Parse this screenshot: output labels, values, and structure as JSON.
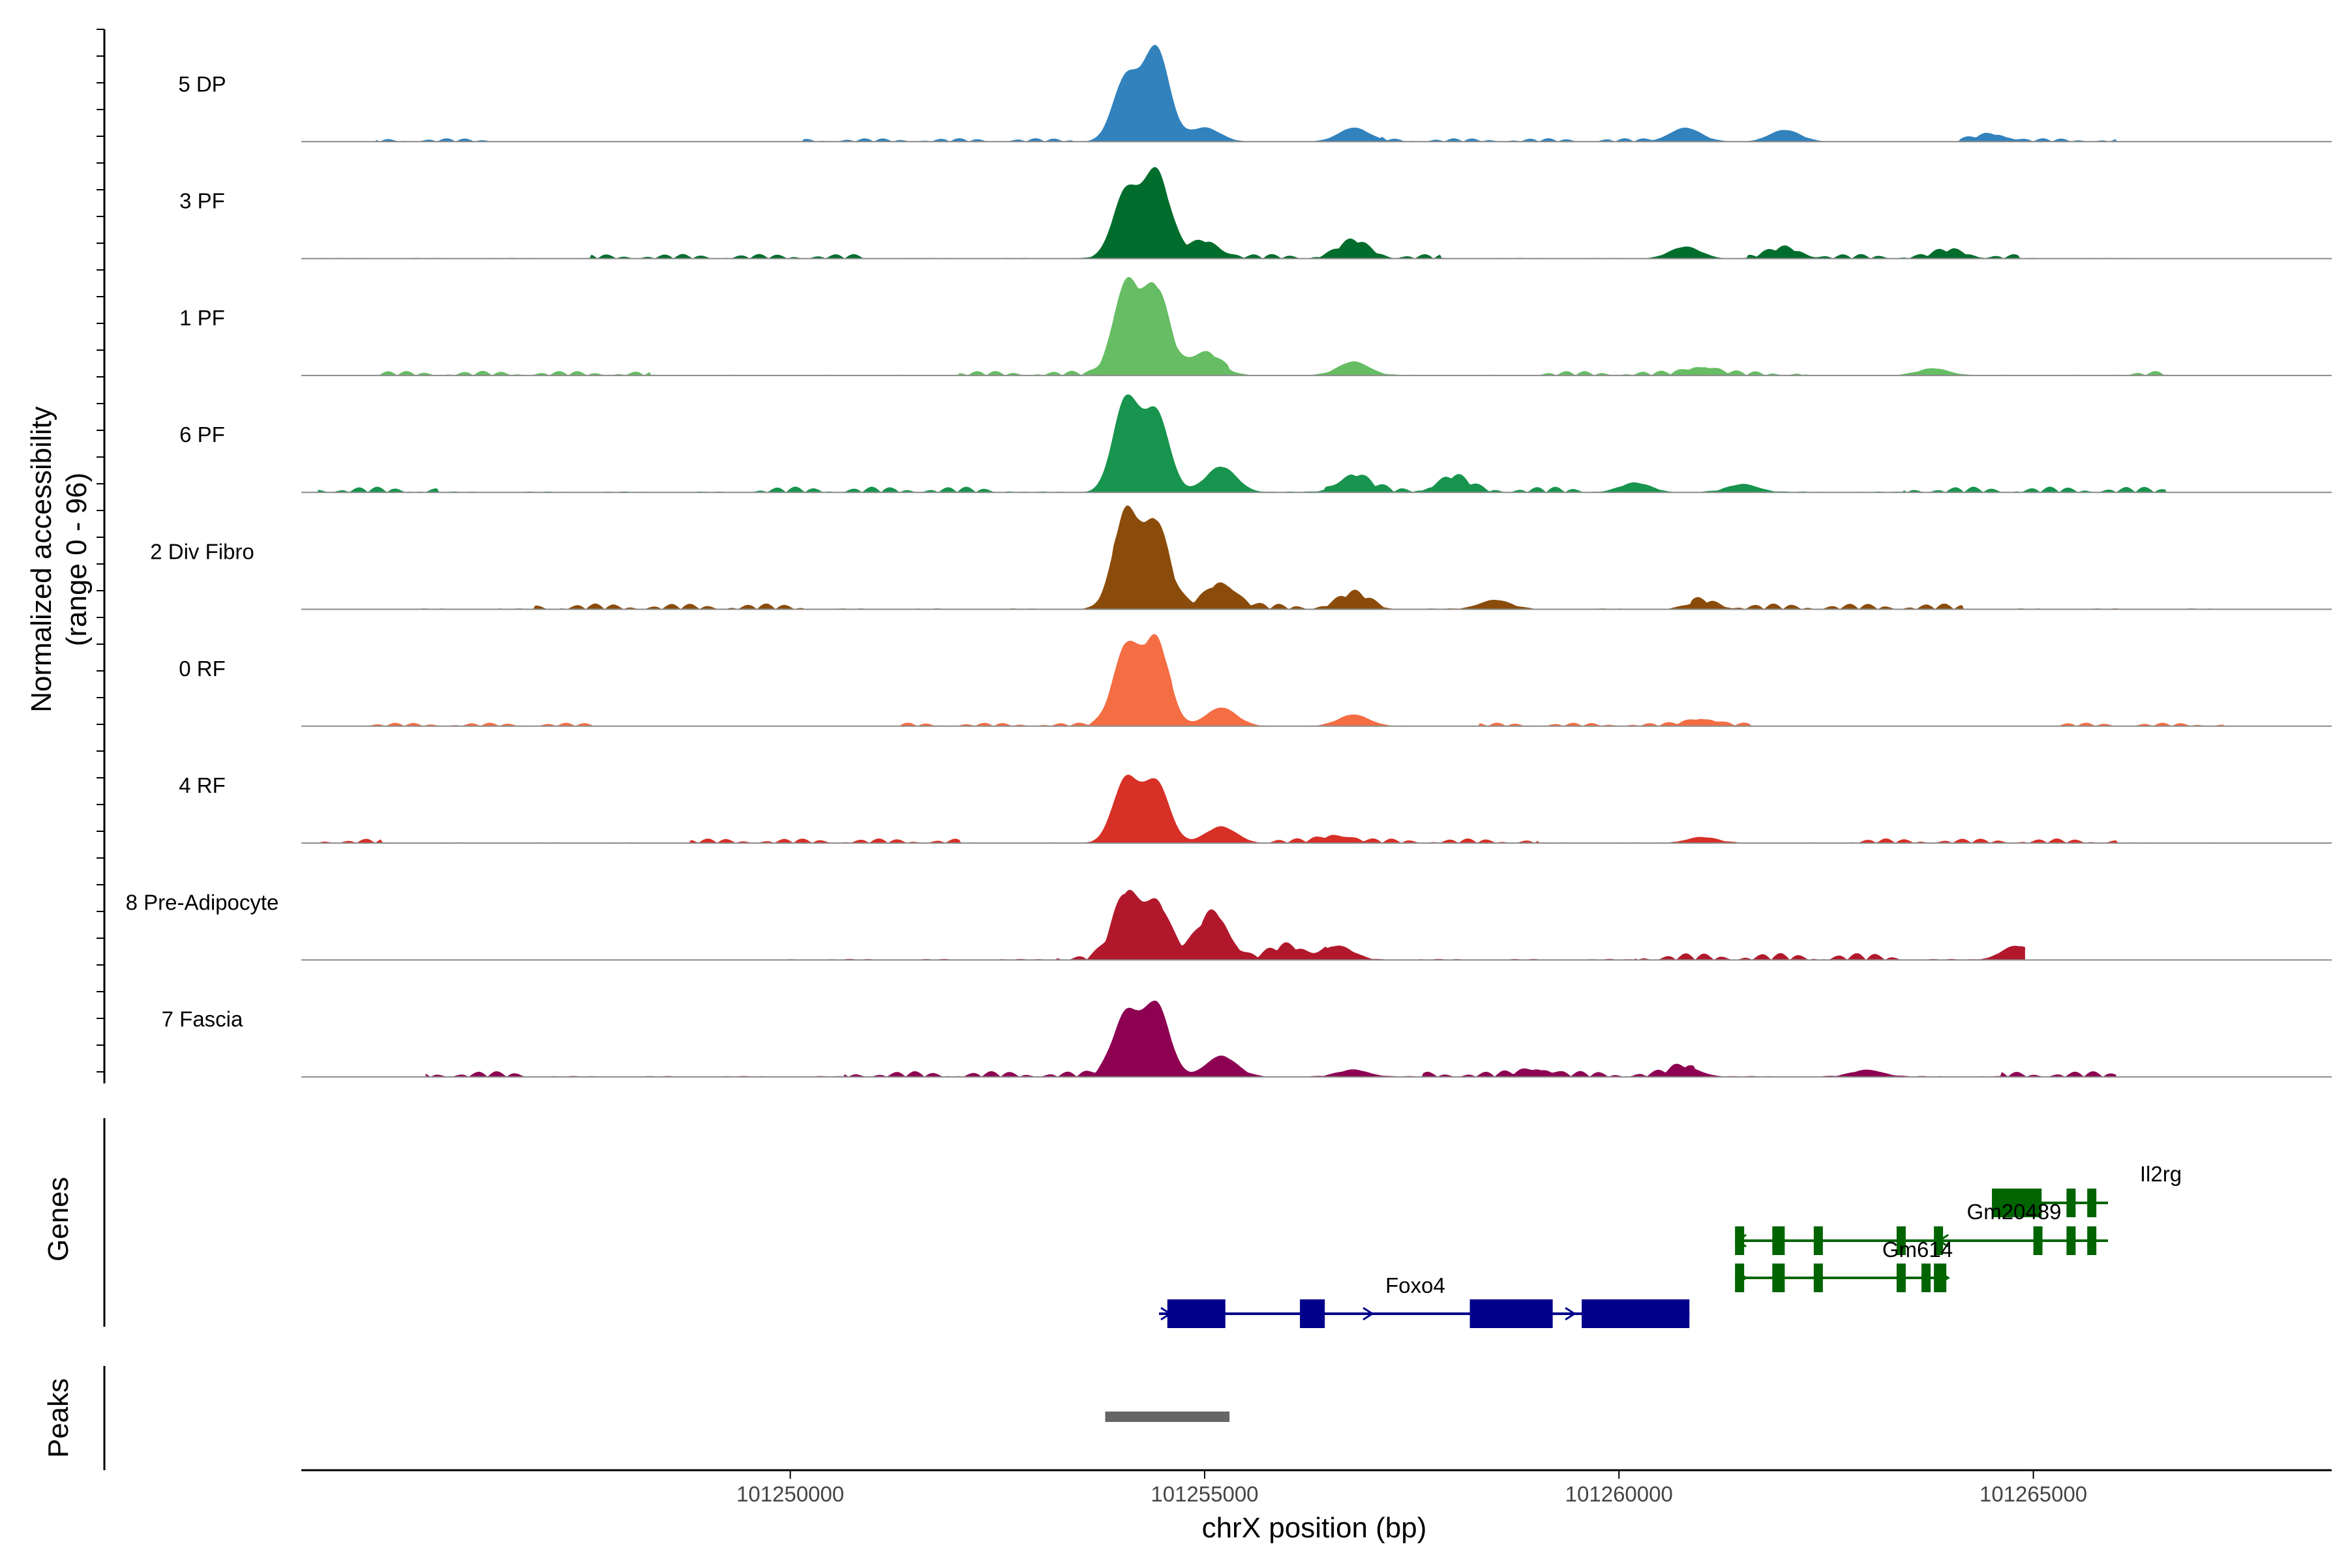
{
  "chart_data": {
    "type": "area",
    "title": "",
    "xlabel": "chrX position (bp)",
    "ylabel": "Normalized accessibility\n(range 0 - 96)",
    "ylabel_line1": "Normalized accessibility",
    "ylabel_line2": "(range 0 - 96)",
    "y_range": [
      0,
      96
    ],
    "xlim": [
      101244100,
      101268600
    ],
    "x_ticks": [
      101250000,
      101255000,
      101260000,
      101265000
    ],
    "x_tick_labels": [
      "101250000",
      "101255000",
      "101260000",
      "101265000"
    ],
    "panel_labels": {
      "genes": "Genes",
      "peaks": "Peaks"
    },
    "tracks": [
      {
        "name": "5 DP",
        "color": "#3182bd",
        "peaks": [
          [
            101254050,
            55
          ],
          [
            101254420,
            80
          ],
          [
            101255000,
            12
          ],
          [
            101256800,
            12
          ],
          [
            101260800,
            12
          ],
          [
            101262000,
            10
          ],
          [
            101264500,
            6
          ]
        ],
        "noise": [
          101245000,
          101266000
        ],
        "bg": 3
      },
      {
        "name": "3 PF",
        "color": "#006d2c",
        "peaks": [
          [
            101254050,
            58
          ],
          [
            101254420,
            75
          ],
          [
            101255000,
            14
          ],
          [
            101256800,
            14
          ],
          [
            101260800,
            10
          ],
          [
            101262000,
            8
          ],
          [
            101264000,
            6
          ]
        ],
        "noise": [
          101244300,
          101266400
        ],
        "bg": 4
      },
      {
        "name": "1 PF",
        "color": "#66bd63",
        "peaks": [
          [
            101254050,
            78
          ],
          [
            101254420,
            72
          ],
          [
            101255000,
            20
          ],
          [
            101256800,
            12
          ],
          [
            101261000,
            7
          ],
          [
            101263800,
            6
          ]
        ],
        "noise": [
          101244300,
          101266600
        ],
        "bg": 4
      },
      {
        "name": "6 PF",
        "color": "#17944d",
        "peaks": [
          [
            101254050,
            80
          ],
          [
            101254420,
            68
          ],
          [
            101255200,
            22
          ],
          [
            101256800,
            14
          ],
          [
            101258000,
            12
          ],
          [
            101260200,
            8
          ],
          [
            101261500,
            7
          ]
        ],
        "noise": [
          101244300,
          101266600
        ],
        "bg": 5
      },
      {
        "name": "2 Div Fibro",
        "color": "#8b4c0b",
        "peaks": [
          [
            101254050,
            82
          ],
          [
            101254420,
            72
          ],
          [
            101255200,
            22
          ],
          [
            101256800,
            12
          ],
          [
            101258500,
            8
          ],
          [
            101261000,
            6
          ]
        ],
        "noise": [
          101244900,
          101267300
        ],
        "bg": 5
      },
      {
        "name": "0 RF",
        "color": "#f46d43",
        "peaks": [
          [
            101254050,
            68
          ],
          [
            101254420,
            72
          ],
          [
            101255200,
            16
          ],
          [
            101256800,
            10
          ],
          [
            101261000,
            6
          ]
        ],
        "noise": [
          101244900,
          101267300
        ],
        "bg": 3
      },
      {
        "name": "4 RF",
        "color": "#d73027",
        "peaks": [
          [
            101254050,
            55
          ],
          [
            101254420,
            52
          ],
          [
            101255200,
            14
          ],
          [
            101256600,
            6
          ],
          [
            101261000,
            5
          ]
        ],
        "noise": [
          101244300,
          101267300
        ],
        "bg": 4
      },
      {
        "name": "8 Pre-Adipocyte",
        "color": "#b2182b",
        "peaks": [
          [
            101254050,
            55
          ],
          [
            101254420,
            48
          ],
          [
            101255100,
            40
          ],
          [
            101256000,
            10
          ],
          [
            101256600,
            12
          ],
          [
            101264800,
            12
          ]
        ],
        "noise": [
          101249900,
          101264900
        ],
        "bg": 6
      },
      {
        "name": "7 Fascia",
        "color": "#8e0152",
        "peaks": [
          [
            101254050,
            55
          ],
          [
            101254420,
            62
          ],
          [
            101255200,
            18
          ],
          [
            101256800,
            6
          ],
          [
            101259000,
            6
          ],
          [
            101260800,
            8
          ],
          [
            101263000,
            6
          ]
        ],
        "noise": [
          101245600,
          101266000
        ],
        "bg": 5
      }
    ],
    "genes": [
      {
        "name": "Foxo4",
        "color": "#00008b",
        "strand": "+",
        "start": 101254450,
        "end": 101260850,
        "row": 3,
        "exons": [
          [
            101254550,
            101255250
          ],
          [
            101256150,
            101256450
          ],
          [
            101258200,
            101259200
          ],
          [
            101259550,
            101260850
          ]
        ]
      },
      {
        "name": "Il2rg",
        "color": "#006400",
        "strand": "-",
        "start": 101264500,
        "end": 101265900,
        "row": 0,
        "exons": [
          [
            101264500,
            101265100
          ],
          [
            101265400,
            101265450
          ],
          [
            101265650,
            101265700
          ]
        ]
      },
      {
        "name": "Gm20489",
        "color": "#006400",
        "strand": "-",
        "start": 101261400,
        "end": 101265900,
        "row": 1,
        "exons": [
          [
            101261400,
            101261500
          ],
          [
            101261850,
            101262000
          ],
          [
            101262350,
            101262400
          ],
          [
            101263350,
            101263450
          ],
          [
            101263800,
            101263850
          ],
          [
            101265000,
            101265050
          ],
          [
            101265400,
            101265450
          ],
          [
            101265650,
            101265700
          ]
        ]
      },
      {
        "name": "Gm614",
        "color": "#006400",
        "strand": "+",
        "start": 101261400,
        "end": 101263950,
        "row": 2,
        "exons": [
          [
            101261400,
            101261500
          ],
          [
            101261850,
            101262000
          ],
          [
            101262350,
            101262400
          ],
          [
            101263350,
            101263450
          ],
          [
            101263650,
            101263750
          ],
          [
            101263800,
            101263950
          ]
        ]
      }
    ],
    "peaks_track": [
      {
        "start": 101253800,
        "end": 101255300,
        "color": "#666666"
      }
    ]
  }
}
